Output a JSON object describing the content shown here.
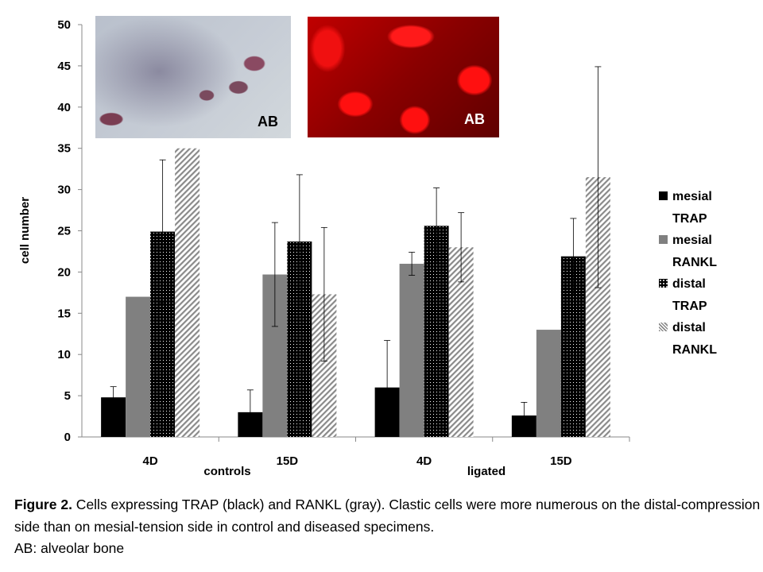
{
  "chart_data": {
    "type": "bar",
    "ylabel": "cell number",
    "ylim": [
      0,
      50
    ],
    "yticks": [
      0,
      5,
      10,
      15,
      20,
      25,
      30,
      35,
      40,
      45,
      50
    ],
    "categories": [
      "4D",
      "15D",
      "4D",
      "15D"
    ],
    "group_labels": [
      "controls",
      "ligated"
    ],
    "series": [
      {
        "name": "mesial TRAP",
        "name_lines": [
          "mesial",
          "TRAP"
        ],
        "color": "#000000",
        "pattern": "solid",
        "values": [
          4.8,
          3.0,
          6.0,
          2.6
        ],
        "errors": [
          1.3,
          2.7,
          5.7,
          1.6
        ]
      },
      {
        "name": "mesial RANKL",
        "name_lines": [
          "mesial",
          "RANKL"
        ],
        "color": "#808080",
        "pattern": "solid",
        "values": [
          17.0,
          19.7,
          21.0,
          13.0
        ],
        "errors": [
          null,
          6.3,
          1.4,
          null
        ]
      },
      {
        "name": "distal TRAP",
        "name_lines": [
          "distal",
          "TRAP"
        ],
        "color": "#000000",
        "pattern": "dots",
        "values": [
          24.9,
          23.7,
          25.6,
          21.9
        ],
        "errors": [
          8.7,
          8.1,
          4.6,
          4.6
        ]
      },
      {
        "name": "distal RANKL",
        "name_lines": [
          "distal",
          "RANKL"
        ],
        "color": "#a0a0a0",
        "pattern": "diagonal",
        "values": [
          35.0,
          17.3,
          23.0,
          31.5
        ],
        "errors": [
          null,
          8.1,
          4.2,
          13.4
        ]
      }
    ],
    "legend": "right",
    "grid": false
  },
  "insets": [
    {
      "label": "AB"
    },
    {
      "label": "AB"
    }
  ],
  "caption": {
    "bold": "Figure 2.",
    "text": "  Cells expressing TRAP (black) and RANKL (gray). Clastic cells were more numerous on the distal-compression side than on mesial-tension side in control and diseased specimens.",
    "line2": "AB: alveolar bone"
  }
}
